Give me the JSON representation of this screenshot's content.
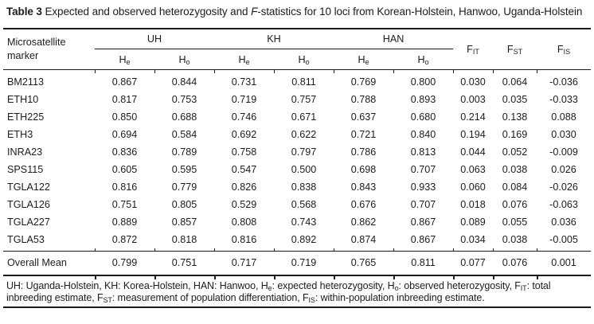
{
  "caption": {
    "label": "Table 3",
    "pre": " Expected and observed heterozygosity and ",
    "italic": "F",
    "post": "-statistics for 10 loci from Korean-Holstein, Hanwoo, Uganda-Holstein"
  },
  "table": {
    "marker_header": "Microsatellite marker",
    "groups": [
      "UH",
      "KH",
      "HAN"
    ],
    "sub_headers": [
      {
        "base": "H",
        "sub": "e"
      },
      {
        "base": "H",
        "sub": "o"
      },
      {
        "base": "H",
        "sub": "e"
      },
      {
        "base": "H",
        "sub": "o"
      },
      {
        "base": "H",
        "sub": "e"
      },
      {
        "base": "H",
        "sub": "o"
      }
    ],
    "f_headers": [
      {
        "base": "F",
        "sub": "IT"
      },
      {
        "base": "F",
        "sub": "ST"
      },
      {
        "base": "F",
        "sub": "IS"
      }
    ],
    "rows": [
      {
        "marker": "BM2113",
        "values": [
          "0.867",
          "0.844",
          "0.731",
          "0.811",
          "0.769",
          "0.800",
          "0.030",
          "0.064",
          "-0.036"
        ]
      },
      {
        "marker": "ETH10",
        "values": [
          "0.817",
          "0.753",
          "0.719",
          "0.757",
          "0.788",
          "0.893",
          "0.003",
          "0.035",
          "-0.033"
        ]
      },
      {
        "marker": "ETH225",
        "values": [
          "0.850",
          "0.688",
          "0.746",
          "0.671",
          "0.637",
          "0.680",
          "0.214",
          "0.138",
          "0.088"
        ]
      },
      {
        "marker": "ETH3",
        "values": [
          "0.694",
          "0.584",
          "0.692",
          "0.622",
          "0.721",
          "0.840",
          "0.194",
          "0.169",
          "0.030"
        ]
      },
      {
        "marker": "INRA23",
        "values": [
          "0.836",
          "0.789",
          "0.758",
          "0.797",
          "0.786",
          "0.813",
          "0.044",
          "0.052",
          "-0.009"
        ]
      },
      {
        "marker": "SPS115",
        "values": [
          "0.605",
          "0.595",
          "0.547",
          "0.500",
          "0.698",
          "0.707",
          "0.063",
          "0.038",
          "0.026"
        ]
      },
      {
        "marker": "TGLA122",
        "values": [
          "0.816",
          "0.779",
          "0.826",
          "0.838",
          "0.843",
          "0.933",
          "0.060",
          "0.084",
          "-0.026"
        ]
      },
      {
        "marker": "TGLA126",
        "values": [
          "0.751",
          "0.805",
          "0.529",
          "0.568",
          "0.676",
          "0.707",
          "0.018",
          "0.076",
          "-0.063"
        ]
      },
      {
        "marker": "TGLA227",
        "values": [
          "0.889",
          "0.857",
          "0.808",
          "0.743",
          "0.862",
          "0.867",
          "0.089",
          "0.055",
          "0.036"
        ]
      },
      {
        "marker": "TGLA53",
        "values": [
          "0.872",
          "0.818",
          "0.816",
          "0.892",
          "0.874",
          "0.867",
          "0.034",
          "0.038",
          "-0.005"
        ]
      }
    ],
    "summary": {
      "marker": "Overall Mean",
      "values": [
        "0.799",
        "0.751",
        "0.717",
        "0.719",
        "0.765",
        "0.811",
        "0.077",
        "0.076",
        "0.001"
      ]
    }
  },
  "footnote": {
    "segments": [
      {
        "t": "UH: Uganda-Holstein, KH: Korea-Holstein, HAN: Hanwoo, H"
      },
      {
        "sub": "e"
      },
      {
        "t": ": expected heterozygosity, H"
      },
      {
        "sub": "o"
      },
      {
        "t": ": observed heterozygosity, F"
      },
      {
        "sub": "IT"
      },
      {
        "t": ": total inbreeding estimate, F"
      },
      {
        "sub": "ST"
      },
      {
        "t": ": measurement of population differentiation, F"
      },
      {
        "sub": "IS"
      },
      {
        "t": ": within-population inbreeding estimate."
      }
    ]
  },
  "colors": {
    "text": "#1c1c1c",
    "rule": "#1a1a1a",
    "background": "#ffffff"
  }
}
